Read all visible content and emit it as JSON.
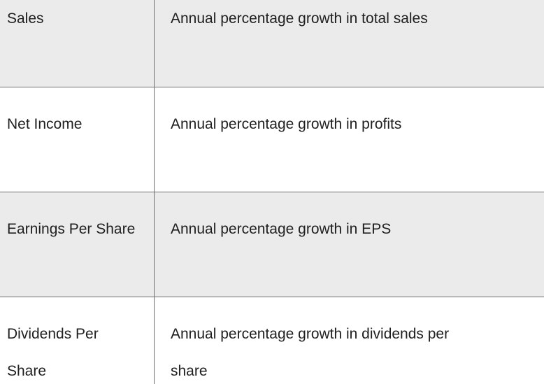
{
  "table": {
    "rows": [
      {
        "term": "Sales",
        "definition": "Annual percentage growth in total sales"
      },
      {
        "term": "Net Income",
        "definition": "Annual percentage growth in profits"
      },
      {
        "term": "Earnings Per Share",
        "definition": "Annual percentage growth in EPS"
      },
      {
        "term": "Dividends Per Share",
        "definition": "Annual percentage growth in dividends per share"
      }
    ]
  },
  "colors": {
    "row_alt_bg": "#ebebeb",
    "row_bg": "#ffffff",
    "border": "#6e6e6e",
    "text": "#1f1f1f"
  }
}
